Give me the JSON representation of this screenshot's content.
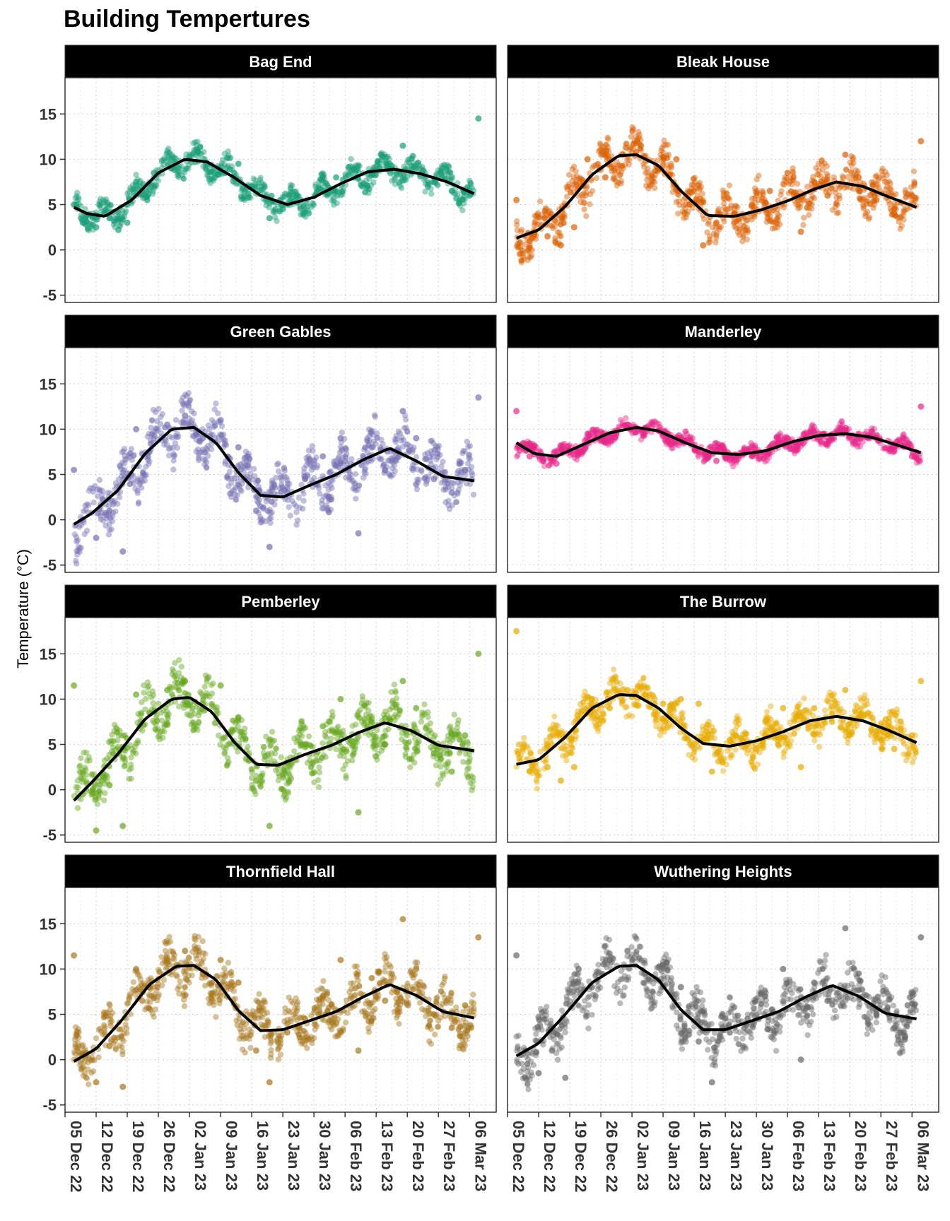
{
  "title": "Building Tempertures",
  "ylabel": "Temperature (°C)",
  "chart_data": {
    "type": "scatter",
    "title": "Building Tempertures",
    "xlabel": "",
    "ylabel": "Temperature (°C)",
    "ylim": [
      -5.8,
      19
    ],
    "yticks": [
      -5,
      0,
      5,
      10,
      15
    ],
    "xlim": [
      "2022-12-05",
      "2023-03-12"
    ],
    "xticks": [
      "05 Dec 22",
      "12 Dec 22",
      "19 Dec 22",
      "26 Dec 22",
      "02 Jan 23",
      "09 Jan 23",
      "16 Jan 23",
      "23 Jan 23",
      "30 Jan 23",
      "06 Feb 23",
      "13 Feb 23",
      "20 Feb 23",
      "27 Feb 23",
      "06 Mar 23"
    ],
    "grid": true,
    "smooth_line_color": "#000000",
    "panels": [
      {
        "name": "Bag End",
        "color": "#1B9E77",
        "smooth": {
          "x": [
            "2022-12-07",
            "2022-12-10",
            "2022-12-14",
            "2022-12-20",
            "2022-12-26",
            "2023-01-01",
            "2023-01-06",
            "2023-01-12",
            "2023-01-18",
            "2023-01-24",
            "2023-01-30",
            "2023-02-05",
            "2023-02-11",
            "2023-02-17",
            "2023-02-23",
            "2023-03-01",
            "2023-03-07"
          ],
          "y": [
            4.7,
            4.0,
            3.7,
            5.5,
            8.5,
            10.0,
            9.7,
            8.0,
            6.0,
            5.0,
            5.8,
            7.3,
            8.6,
            8.9,
            8.4,
            7.5,
            6.2
          ]
        },
        "points": {
          "x": [
            "2022-12-07",
            "2022-12-09",
            "2022-12-12",
            "2022-12-15",
            "2022-12-17",
            "2022-12-19",
            "2022-12-21",
            "2022-12-25",
            "2022-12-29",
            "2023-01-02",
            "2023-01-06",
            "2023-01-10",
            "2023-01-13",
            "2023-01-16",
            "2023-01-20",
            "2023-01-23",
            "2023-01-27",
            "2023-01-31",
            "2023-02-04",
            "2023-02-08",
            "2023-02-12",
            "2023-02-16",
            "2023-02-19",
            "2023-02-22",
            "2023-02-26",
            "2023-03-02",
            "2023-03-06",
            "2023-03-08"
          ],
          "y": [
            5.0,
            3.0,
            2.5,
            3.5,
            2.2,
            3.0,
            7.5,
            8.5,
            9.0,
            10.0,
            9.5,
            8.5,
            9.5,
            7.0,
            3.5,
            4.5,
            5.5,
            6.5,
            8.0,
            9.0,
            8.5,
            9.5,
            11.5,
            9.0,
            7.5,
            6.5,
            6.0,
            14.5
          ]
        }
      },
      {
        "name": "Bleak House",
        "color": "#D95F02",
        "smooth": {
          "x": [
            "2022-12-07",
            "2022-12-12",
            "2022-12-18",
            "2022-12-24",
            "2022-12-30",
            "2023-01-03",
            "2023-01-08",
            "2023-01-13",
            "2023-01-19",
            "2023-01-25",
            "2023-01-31",
            "2023-02-06",
            "2023-02-12",
            "2023-02-17",
            "2023-02-23",
            "2023-03-01",
            "2023-03-07"
          ],
          "y": [
            1.3,
            2.2,
            4.8,
            8.3,
            10.4,
            10.5,
            9.3,
            6.5,
            3.8,
            3.7,
            4.4,
            5.4,
            6.7,
            7.5,
            7.0,
            5.8,
            4.7
          ]
        },
        "points": {
          "x": [
            "2022-12-07",
            "2022-12-10",
            "2022-12-14",
            "2022-12-17",
            "2022-12-20",
            "2022-12-23",
            "2022-12-27",
            "2022-12-31",
            "2023-01-04",
            "2023-01-08",
            "2023-01-12",
            "2023-01-15",
            "2023-01-18",
            "2023-01-21",
            "2023-01-25",
            "2023-01-29",
            "2023-02-02",
            "2023-02-06",
            "2023-02-09",
            "2023-02-12",
            "2023-02-15",
            "2023-02-19",
            "2023-02-22",
            "2023-02-26",
            "2023-03-02",
            "2023-03-06",
            "2023-03-08"
          ],
          "y": [
            5.5,
            1.0,
            1.5,
            0.5,
            2.5,
            10.0,
            8.0,
            10.5,
            11.5,
            9.0,
            10.0,
            5.0,
            0.5,
            3.0,
            4.0,
            5.0,
            6.5,
            8.5,
            2.0,
            7.5,
            6.0,
            10.5,
            8.0,
            5.5,
            4.0,
            6.0,
            12.0
          ]
        }
      },
      {
        "name": "Green Gables",
        "color": "#7570B3",
        "smooth": {
          "x": [
            "2022-12-07",
            "2022-12-11",
            "2022-12-17",
            "2022-12-23",
            "2022-12-29",
            "2023-01-03",
            "2023-01-08",
            "2023-01-13",
            "2023-01-18",
            "2023-01-23",
            "2023-01-29",
            "2023-02-04",
            "2023-02-10",
            "2023-02-16",
            "2023-02-22",
            "2023-02-28",
            "2023-03-07"
          ],
          "y": [
            -0.5,
            0.7,
            3.3,
            7.3,
            10.0,
            10.2,
            8.5,
            5.2,
            2.7,
            2.5,
            3.8,
            5.0,
            6.6,
            7.9,
            6.5,
            4.8,
            4.3
          ]
        },
        "points": {
          "x": [
            "2022-12-07",
            "2022-12-09",
            "2022-12-12",
            "2022-12-15",
            "2022-12-18",
            "2022-12-21",
            "2022-12-24",
            "2022-12-28",
            "2023-01-01",
            "2023-01-05",
            "2023-01-09",
            "2023-01-13",
            "2023-01-17",
            "2023-01-20",
            "2023-01-24",
            "2023-01-28",
            "2023-02-01",
            "2023-02-05",
            "2023-02-09",
            "2023-02-12",
            "2023-02-15",
            "2023-02-19",
            "2023-02-22",
            "2023-02-26",
            "2023-03-02",
            "2023-03-05",
            "2023-03-08"
          ],
          "y": [
            5.5,
            0.0,
            -2.0,
            1.0,
            -3.5,
            10.0,
            7.5,
            10.5,
            11.5,
            9.0,
            11.0,
            8.0,
            1.0,
            -3.0,
            3.0,
            4.5,
            7.0,
            9.0,
            -1.5,
            8.0,
            5.5,
            12.0,
            9.0,
            4.5,
            3.0,
            5.5,
            13.5
          ]
        }
      },
      {
        "name": "Manderley",
        "color": "#E7298A",
        "smooth": {
          "x": [
            "2022-12-07",
            "2022-12-11",
            "2022-12-16",
            "2022-12-22",
            "2022-12-28",
            "2023-01-03",
            "2023-01-08",
            "2023-01-14",
            "2023-01-20",
            "2023-01-26",
            "2023-02-01",
            "2023-02-07",
            "2023-02-13",
            "2023-02-19",
            "2023-02-25",
            "2023-03-03",
            "2023-03-08"
          ],
          "y": [
            8.5,
            7.3,
            7.0,
            8.3,
            9.6,
            10.2,
            9.8,
            8.5,
            7.4,
            7.2,
            7.6,
            8.6,
            9.3,
            9.5,
            9.1,
            8.2,
            7.4
          ]
        },
        "points": {
          "x": [
            "2022-12-07",
            "2022-12-10",
            "2022-12-13",
            "2022-12-16",
            "2022-12-19",
            "2022-12-23",
            "2022-12-27",
            "2023-01-01",
            "2023-01-05",
            "2023-01-09",
            "2023-01-13",
            "2023-01-17",
            "2023-01-21",
            "2023-01-25",
            "2023-01-29",
            "2023-02-02",
            "2023-02-06",
            "2023-02-10",
            "2023-02-14",
            "2023-02-18",
            "2023-02-22",
            "2023-02-26",
            "2023-03-02",
            "2023-03-06",
            "2023-03-08"
          ],
          "y": [
            12.0,
            7.0,
            6.5,
            6.2,
            7.5,
            9.5,
            9.0,
            10.5,
            10.0,
            9.5,
            9.0,
            7.5,
            6.5,
            7.0,
            7.0,
            8.0,
            9.0,
            9.0,
            9.5,
            10.0,
            9.5,
            9.0,
            8.0,
            7.0,
            12.5
          ]
        }
      },
      {
        "name": "Pemberley",
        "color": "#66A61E",
        "smooth": {
          "x": [
            "2022-12-07",
            "2022-12-11",
            "2022-12-17",
            "2022-12-23",
            "2022-12-29",
            "2023-01-02",
            "2023-01-07",
            "2023-01-12",
            "2023-01-17",
            "2023-01-22",
            "2023-01-28",
            "2023-02-03",
            "2023-02-09",
            "2023-02-15",
            "2023-02-21",
            "2023-02-27",
            "2023-03-07"
          ],
          "y": [
            -1.2,
            0.8,
            4.0,
            7.8,
            10.0,
            10.2,
            8.6,
            5.3,
            2.8,
            2.7,
            3.9,
            4.9,
            6.3,
            7.4,
            6.5,
            4.9,
            4.3
          ]
        },
        "points": {
          "x": [
            "2022-12-07",
            "2022-12-09",
            "2022-12-12",
            "2022-12-15",
            "2022-12-18",
            "2022-12-21",
            "2022-12-24",
            "2022-12-28",
            "2023-01-01",
            "2023-01-05",
            "2023-01-09",
            "2023-01-13",
            "2023-01-17",
            "2023-01-20",
            "2023-01-24",
            "2023-01-28",
            "2023-02-01",
            "2023-02-05",
            "2023-02-09",
            "2023-02-12",
            "2023-02-15",
            "2023-02-19",
            "2023-02-22",
            "2023-02-26",
            "2023-03-02",
            "2023-03-05",
            "2023-03-08"
          ],
          "y": [
            11.5,
            -0.5,
            -4.5,
            0.5,
            -4.0,
            10.5,
            8.5,
            11.0,
            12.0,
            9.5,
            11.5,
            8.0,
            1.0,
            -4.0,
            3.0,
            5.0,
            7.0,
            10.0,
            -2.5,
            7.5,
            5.0,
            12.0,
            9.0,
            4.0,
            2.0,
            6.0,
            15.0
          ]
        }
      },
      {
        "name": "The Burrow",
        "color": "#E6AB02",
        "smooth": {
          "x": [
            "2022-12-07",
            "2022-12-12",
            "2022-12-18",
            "2022-12-24",
            "2022-12-30",
            "2023-01-03",
            "2023-01-08",
            "2023-01-13",
            "2023-01-18",
            "2023-01-24",
            "2023-01-30",
            "2023-02-05",
            "2023-02-11",
            "2023-02-17",
            "2023-02-23",
            "2023-03-01",
            "2023-03-07"
          ],
          "y": [
            2.8,
            3.3,
            5.8,
            9.0,
            10.5,
            10.4,
            9.0,
            6.8,
            5.1,
            4.8,
            5.4,
            6.4,
            7.6,
            8.1,
            7.6,
            6.5,
            5.2
          ]
        },
        "points": {
          "x": [
            "2022-12-07",
            "2022-12-10",
            "2022-12-14",
            "2022-12-17",
            "2022-12-20",
            "2022-12-24",
            "2022-12-28",
            "2023-01-01",
            "2023-01-05",
            "2023-01-09",
            "2023-01-13",
            "2023-01-17",
            "2023-01-20",
            "2023-01-24",
            "2023-01-28",
            "2023-02-01",
            "2023-02-05",
            "2023-02-09",
            "2023-02-12",
            "2023-02-16",
            "2023-02-19",
            "2023-02-22",
            "2023-02-26",
            "2023-03-02",
            "2023-03-06",
            "2023-03-08"
          ],
          "y": [
            17.5,
            2.0,
            2.5,
            1.0,
            2.5,
            10.0,
            9.0,
            11.0,
            10.5,
            9.5,
            10.0,
            9.5,
            2.0,
            5.5,
            5.0,
            6.0,
            9.0,
            2.5,
            9.0,
            7.5,
            11.0,
            8.0,
            6.5,
            4.5,
            6.0,
            12.0
          ]
        }
      },
      {
        "name": "Thornfield Hall",
        "color": "#A6761D",
        "smooth": {
          "x": [
            "2022-12-07",
            "2022-12-12",
            "2022-12-18",
            "2022-12-24",
            "2022-12-30",
            "2023-01-03",
            "2023-01-08",
            "2023-01-13",
            "2023-01-18",
            "2023-01-23",
            "2023-01-29",
            "2023-02-04",
            "2023-02-10",
            "2023-02-16",
            "2023-02-22",
            "2023-02-28",
            "2023-03-07"
          ],
          "y": [
            -0.2,
            1.2,
            4.5,
            8.3,
            10.3,
            10.4,
            8.8,
            5.4,
            3.2,
            3.3,
            4.3,
            5.3,
            6.9,
            8.3,
            7.1,
            5.3,
            4.6
          ]
        },
        "points": {
          "x": [
            "2022-12-07",
            "2022-12-09",
            "2022-12-12",
            "2022-12-15",
            "2022-12-18",
            "2022-12-21",
            "2022-12-24",
            "2022-12-28",
            "2023-01-01",
            "2023-01-05",
            "2023-01-09",
            "2023-01-13",
            "2023-01-17",
            "2023-01-20",
            "2023-01-24",
            "2023-01-28",
            "2023-02-01",
            "2023-02-05",
            "2023-02-09",
            "2023-02-12",
            "2023-02-15",
            "2023-02-19",
            "2023-02-22",
            "2023-02-26",
            "2023-03-02",
            "2023-03-05",
            "2023-03-08"
          ],
          "y": [
            11.5,
            0.5,
            -2.5,
            1.5,
            -3.0,
            10.0,
            8.0,
            11.0,
            12.0,
            9.5,
            11.0,
            8.5,
            1.0,
            -2.5,
            3.0,
            4.5,
            7.0,
            11.0,
            1.0,
            9.0,
            6.5,
            15.5,
            10.0,
            5.0,
            3.5,
            6.0,
            13.5
          ]
        }
      },
      {
        "name": "Wuthering Heights",
        "color": "#666666",
        "smooth": {
          "x": [
            "2022-12-07",
            "2022-12-12",
            "2022-12-18",
            "2022-12-24",
            "2022-12-30",
            "2023-01-03",
            "2023-01-08",
            "2023-01-13",
            "2023-01-18",
            "2023-01-23",
            "2023-01-29",
            "2023-02-04",
            "2023-02-10",
            "2023-02-16",
            "2023-02-22",
            "2023-02-28",
            "2023-03-07"
          ],
          "y": [
            0.4,
            1.8,
            5.0,
            8.5,
            10.3,
            10.4,
            8.8,
            5.5,
            3.3,
            3.3,
            4.3,
            5.3,
            6.9,
            8.2,
            7.0,
            5.1,
            4.5
          ]
        },
        "points": {
          "x": [
            "2022-12-07",
            "2022-12-09",
            "2022-12-12",
            "2022-12-15",
            "2022-12-18",
            "2022-12-21",
            "2022-12-24",
            "2022-12-28",
            "2023-01-01",
            "2023-01-05",
            "2023-01-09",
            "2023-01-13",
            "2023-01-17",
            "2023-01-20",
            "2023-01-24",
            "2023-01-28",
            "2023-02-01",
            "2023-02-05",
            "2023-02-09",
            "2023-02-12",
            "2023-02-15",
            "2023-02-19",
            "2023-02-22",
            "2023-02-26",
            "2023-03-02",
            "2023-03-05",
            "2023-03-08"
          ],
          "y": [
            11.5,
            1.0,
            -1.5,
            1.0,
            -2.0,
            10.0,
            8.0,
            11.0,
            12.0,
            9.5,
            10.5,
            8.0,
            2.0,
            -2.5,
            3.0,
            4.5,
            7.0,
            10.0,
            0.0,
            8.5,
            6.5,
            14.5,
            9.5,
            5.0,
            3.5,
            6.0,
            13.5
          ]
        }
      }
    ]
  }
}
